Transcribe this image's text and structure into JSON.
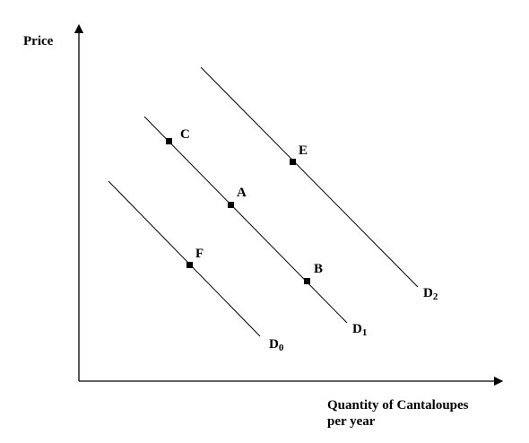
{
  "axes": {
    "y_label": "Price",
    "x_label_line1": "Quantity of Cantaloupes",
    "x_label_line2": "per year"
  },
  "curves": [
    {
      "id": "d0",
      "letter": "D",
      "sub": "0"
    },
    {
      "id": "d1",
      "letter": "D",
      "sub": "1"
    },
    {
      "id": "d2",
      "letter": "D",
      "sub": "2"
    }
  ],
  "points": {
    "c": "C",
    "a": "A",
    "b": "B",
    "e": "E",
    "f": "F"
  }
}
